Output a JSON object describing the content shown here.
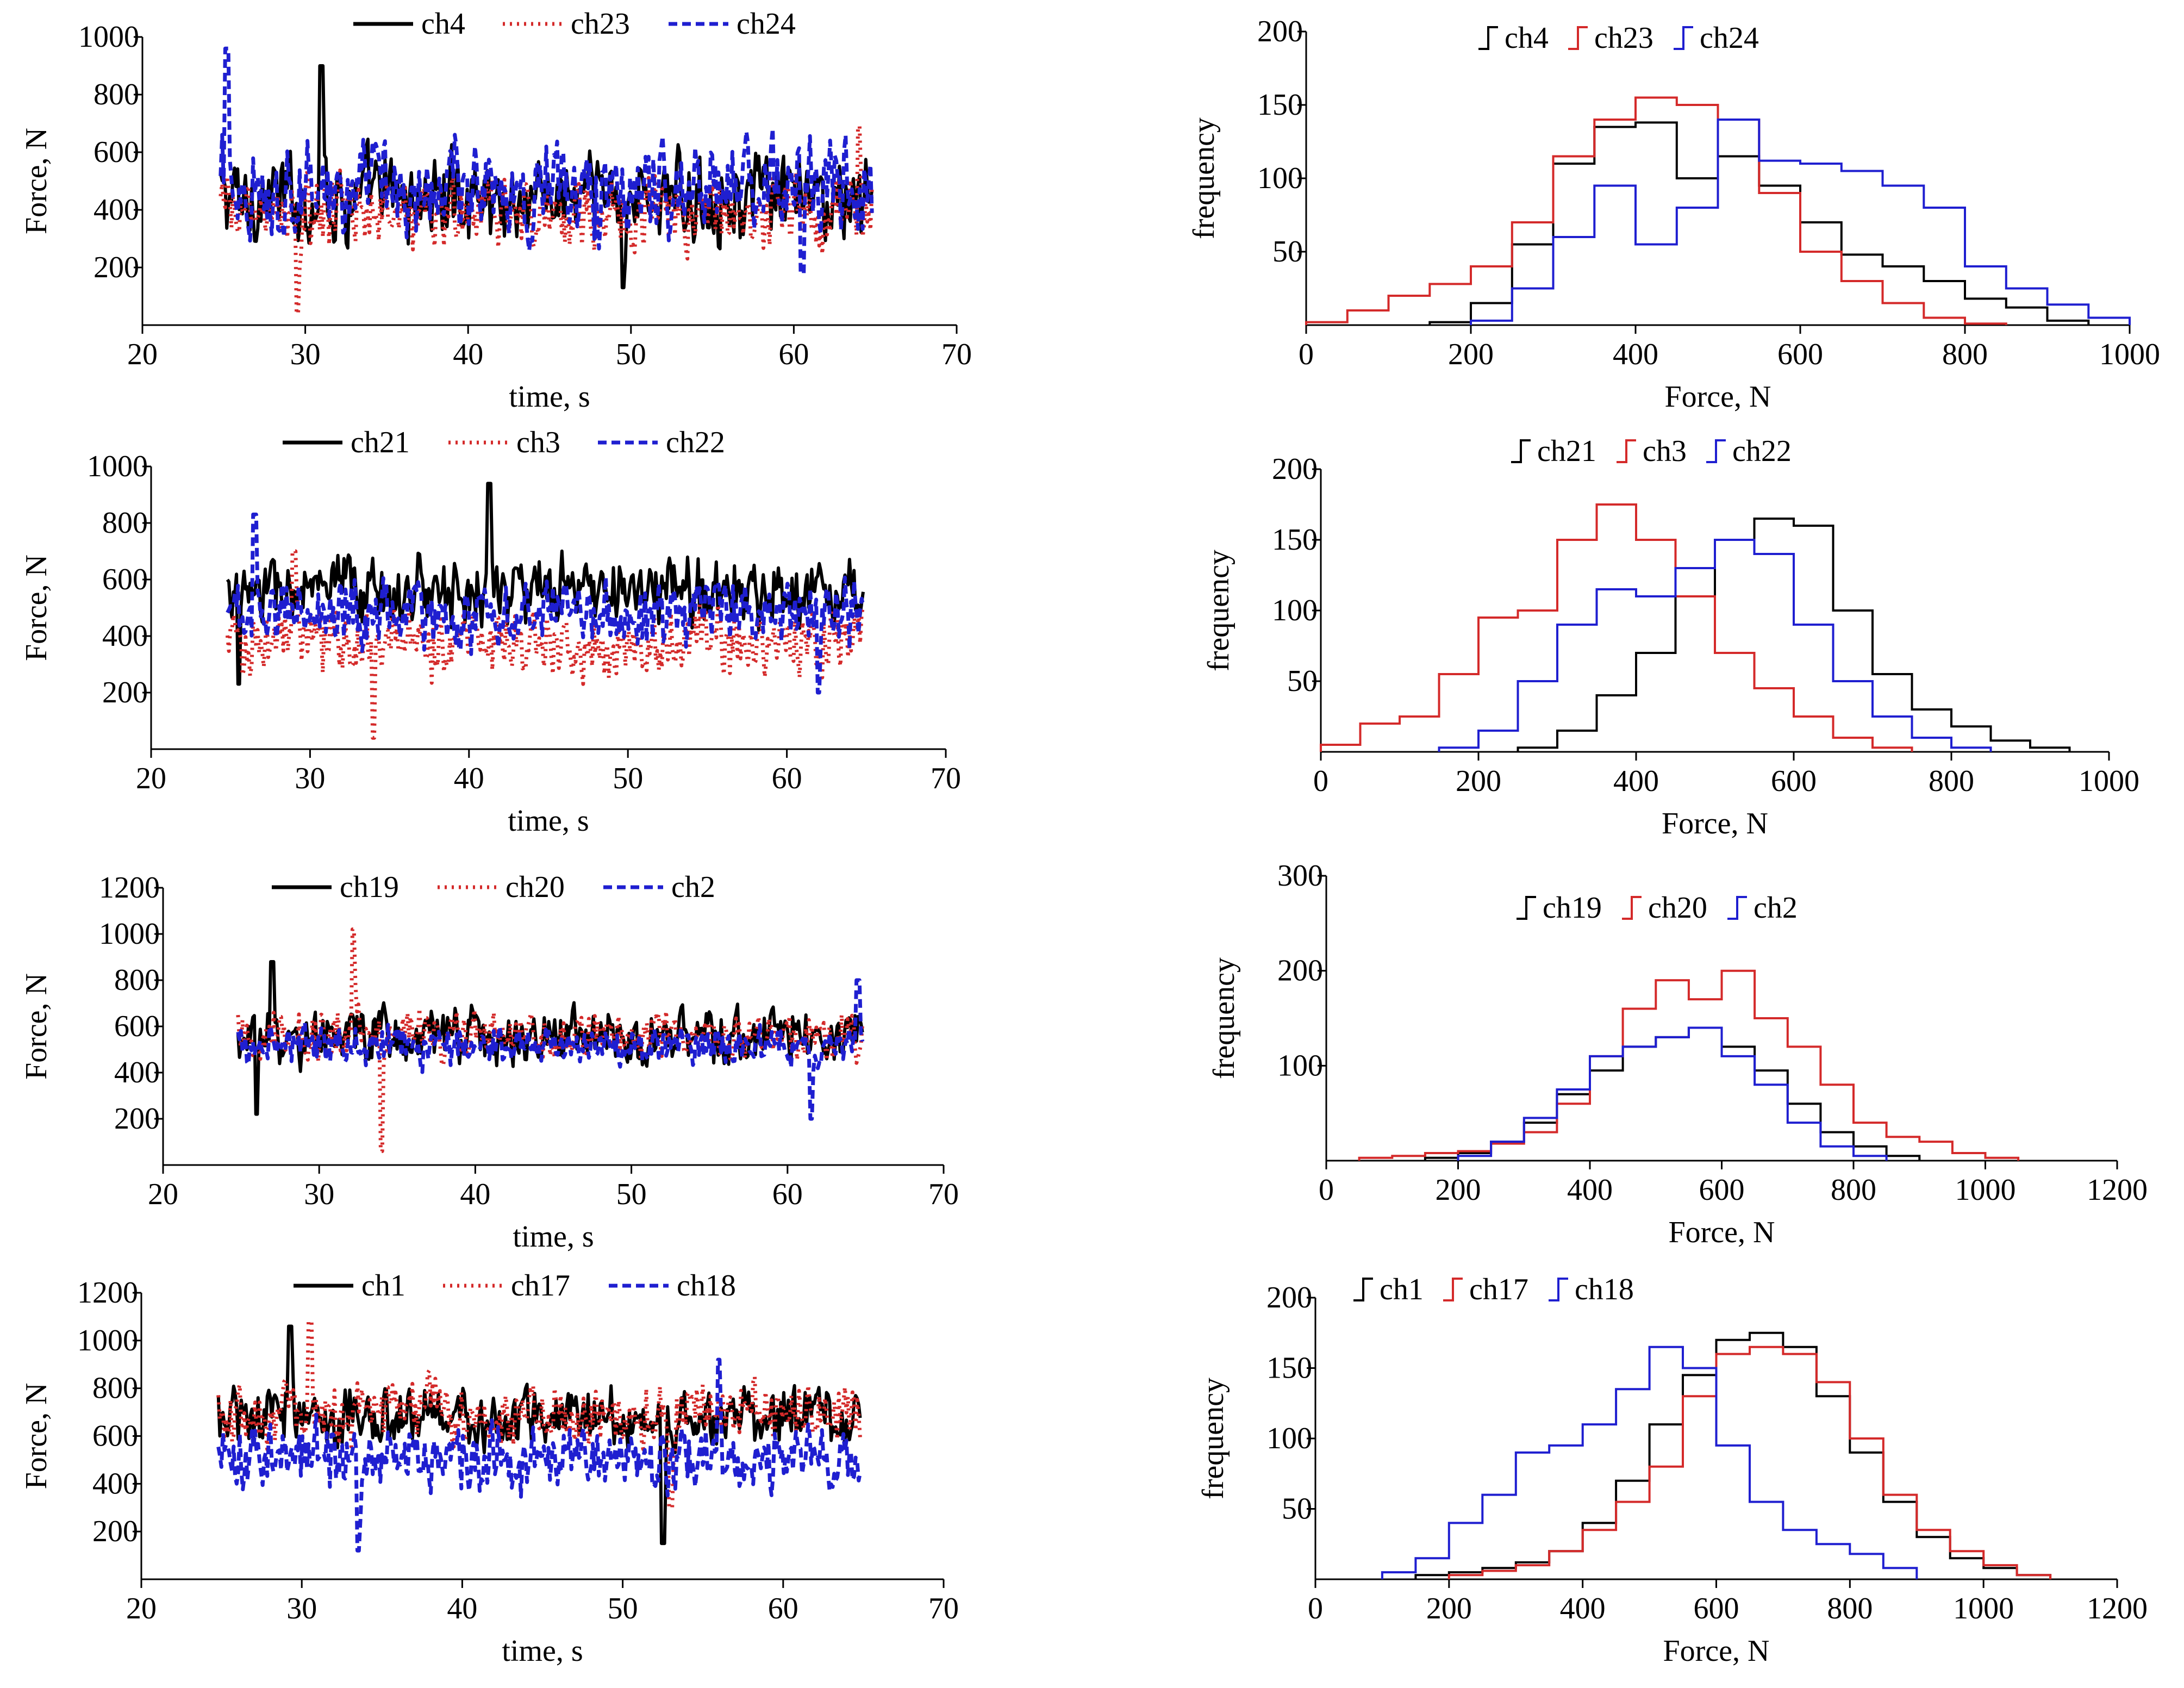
{
  "colors": {
    "black": "#000000",
    "red": "#d42a2a",
    "blue": "#1f1fd0"
  },
  "chart_data": [
    {
      "id": "ts1",
      "type": "line",
      "title": "",
      "xlabel": "time, s",
      "ylabel": "Force, N",
      "xlim": [
        20,
        70
      ],
      "ylim": [
        0,
        1000
      ],
      "xticks": [
        20,
        30,
        40,
        50,
        60,
        70
      ],
      "yticks": [
        200,
        400,
        600,
        800,
        1000
      ],
      "legend": "top",
      "series": [
        {
          "name": "ch4",
          "color": "#000000",
          "dash": "solid",
          "x_range": [
            24.8,
            64.8
          ],
          "mean": 440,
          "amplitude": 150,
          "min": 130,
          "max": 900,
          "peak": [
            31,
            900
          ],
          "trough": [
            49.5,
            130
          ]
        },
        {
          "name": "ch23",
          "color": "#d42a2a",
          "dash": "dotted",
          "x_range": [
            24.8,
            64.8
          ],
          "mean": 390,
          "amplitude": 130,
          "min": 40,
          "max": 700,
          "peak": [
            64,
            690
          ],
          "trough": [
            29.5,
            40
          ]
        },
        {
          "name": "ch24",
          "color": "#1f1fd0",
          "dash": "dashed",
          "x_range": [
            24.8,
            64.8
          ],
          "mean": 470,
          "amplitude": 165,
          "min": 180,
          "max": 960,
          "peak": [
            25.2,
            960
          ],
          "trough": [
            60.5,
            180
          ]
        }
      ]
    },
    {
      "id": "h1",
      "type": "histogram",
      "title": "",
      "xlabel": "Force, N",
      "ylabel": "frequency",
      "xlim": [
        0,
        1000
      ],
      "ylim": [
        0,
        200
      ],
      "xticks": [
        0,
        200,
        400,
        600,
        800,
        1000
      ],
      "yticks": [
        50,
        100,
        150,
        200
      ],
      "legend": "top",
      "series": [
        {
          "name": "ch4",
          "color": "#000000",
          "x": [
            150,
            200,
            250,
            300,
            350,
            400,
            450,
            500,
            550,
            600,
            650,
            700,
            750,
            800,
            850,
            900
          ],
          "y": [
            2,
            15,
            55,
            110,
            135,
            138,
            100,
            115,
            95,
            70,
            48,
            40,
            30,
            18,
            12,
            3
          ]
        },
        {
          "name": "ch23",
          "color": "#d42a2a",
          "x": [
            0,
            50,
            100,
            150,
            200,
            250,
            300,
            350,
            400,
            450,
            500,
            550,
            600,
            650,
            700,
            750,
            800
          ],
          "y": [
            2,
            10,
            20,
            28,
            40,
            70,
            115,
            140,
            155,
            150,
            140,
            90,
            50,
            30,
            15,
            5,
            1
          ]
        },
        {
          "name": "ch24",
          "color": "#1f1fd0",
          "x": [
            200,
            250,
            300,
            350,
            400,
            450,
            500,
            550,
            600,
            650,
            700,
            750,
            800,
            850,
            900,
            950
          ],
          "y": [
            3,
            25,
            60,
            95,
            55,
            80,
            140,
            112,
            110,
            105,
            95,
            80,
            40,
            25,
            14,
            5
          ]
        }
      ]
    },
    {
      "id": "ts2",
      "type": "line",
      "title": "",
      "xlabel": "time, s",
      "ylabel": "Force, N",
      "xlim": [
        20,
        70
      ],
      "ylim": [
        0,
        1000
      ],
      "xticks": [
        20,
        30,
        40,
        50,
        60,
        70
      ],
      "yticks": [
        200,
        400,
        600,
        800,
        1000
      ],
      "legend": "top",
      "series": [
        {
          "name": "ch21",
          "color": "#000000",
          "dash": "solid",
          "x_range": [
            24.8,
            64.8
          ],
          "mean": 560,
          "amplitude": 120,
          "min": 230,
          "max": 940,
          "peak": [
            41.3,
            940
          ],
          "trough": [
            25.5,
            230
          ]
        },
        {
          "name": "ch3",
          "color": "#d42a2a",
          "dash": "dotted",
          "x_range": [
            24.8,
            64.8
          ],
          "mean": 380,
          "amplitude": 125,
          "min": 40,
          "max": 720,
          "peak": [
            29,
            700
          ],
          "trough": [
            34,
            40
          ]
        },
        {
          "name": "ch22",
          "color": "#1f1fd0",
          "dash": "dashed",
          "x_range": [
            24.8,
            64.8
          ],
          "mean": 480,
          "amplitude": 120,
          "min": 200,
          "max": 840,
          "peak": [
            26.5,
            830
          ],
          "trough": [
            62,
            200
          ]
        }
      ]
    },
    {
      "id": "h2",
      "type": "histogram",
      "title": "",
      "xlabel": "Force, N",
      "ylabel": "frequency",
      "xlim": [
        0,
        1000
      ],
      "ylim": [
        0,
        200
      ],
      "xticks": [
        0,
        200,
        400,
        600,
        800,
        1000
      ],
      "yticks": [
        50,
        100,
        150,
        200
      ],
      "legend": "top",
      "series": [
        {
          "name": "ch21",
          "color": "#000000",
          "x": [
            250,
            300,
            350,
            400,
            450,
            500,
            550,
            600,
            650,
            700,
            750,
            800,
            850,
            900
          ],
          "y": [
            3,
            15,
            40,
            70,
            110,
            150,
            165,
            160,
            100,
            55,
            30,
            18,
            8,
            3
          ]
        },
        {
          "name": "ch3",
          "color": "#d42a2a",
          "x": [
            0,
            50,
            100,
            150,
            200,
            250,
            300,
            350,
            400,
            450,
            500,
            550,
            600,
            650,
            700
          ],
          "y": [
            5,
            20,
            25,
            55,
            95,
            100,
            150,
            175,
            150,
            110,
            70,
            45,
            25,
            10,
            3
          ]
        },
        {
          "name": "ch22",
          "color": "#1f1fd0",
          "x": [
            150,
            200,
            250,
            300,
            350,
            400,
            450,
            500,
            550,
            600,
            650,
            700,
            750,
            800
          ],
          "y": [
            3,
            15,
            50,
            90,
            115,
            110,
            130,
            150,
            140,
            90,
            50,
            25,
            10,
            3
          ]
        }
      ]
    },
    {
      "id": "ts3",
      "type": "line",
      "title": "",
      "xlabel": "time, s",
      "ylabel": "Force, N",
      "xlim": [
        20,
        70
      ],
      "ylim": [
        0,
        1200
      ],
      "xticks": [
        20,
        30,
        40,
        50,
        60,
        70
      ],
      "yticks": [
        200,
        400,
        600,
        800,
        1000,
        1200
      ],
      "legend": "top",
      "series": [
        {
          "name": "ch19",
          "color": "#000000",
          "dash": "solid",
          "x_range": [
            24.8,
            64.8
          ],
          "mean": 560,
          "amplitude": 120,
          "min": 220,
          "max": 880,
          "peak": [
            27,
            880
          ],
          "trough": [
            26,
            220
          ]
        },
        {
          "name": "ch20",
          "color": "#d42a2a",
          "dash": "dotted",
          "x_range": [
            24.8,
            64.8
          ],
          "mean": 560,
          "amplitude": 110,
          "min": 60,
          "max": 1020,
          "peak": [
            32.2,
            1020
          ],
          "trough": [
            34,
            60
          ]
        },
        {
          "name": "ch2",
          "color": "#1f1fd0",
          "dash": "dashed",
          "x_range": [
            24.8,
            64.8
          ],
          "mean": 520,
          "amplitude": 85,
          "min": 200,
          "max": 800,
          "peak": [
            64.5,
            800
          ],
          "trough": [
            61.5,
            200
          ]
        }
      ]
    },
    {
      "id": "h3",
      "type": "histogram",
      "title": "",
      "xlabel": "Force, N",
      "ylabel": "frequency",
      "xlim": [
        0,
        1200
      ],
      "ylim": [
        0,
        300
      ],
      "xticks": [
        0,
        200,
        400,
        600,
        800,
        1000,
        1200
      ],
      "yticks": [
        100,
        200,
        300
      ],
      "legend": "top",
      "series": [
        {
          "name": "ch19",
          "color": "#000000",
          "x": [
            150,
            200,
            250,
            300,
            350,
            400,
            450,
            500,
            550,
            600,
            650,
            700,
            750,
            800,
            850
          ],
          "y": [
            3,
            8,
            20,
            40,
            70,
            95,
            120,
            130,
            140,
            120,
            95,
            60,
            30,
            15,
            5
          ]
        },
        {
          "name": "ch20",
          "color": "#d42a2a",
          "x": [
            50,
            100,
            150,
            200,
            250,
            300,
            350,
            400,
            450,
            500,
            550,
            600,
            650,
            700,
            750,
            800,
            850,
            900,
            950,
            1000
          ],
          "y": [
            3,
            5,
            8,
            10,
            18,
            30,
            60,
            110,
            160,
            190,
            170,
            200,
            150,
            120,
            80,
            40,
            25,
            20,
            8,
            3
          ]
        },
        {
          "name": "ch2",
          "color": "#1f1fd0",
          "x": [
            200,
            250,
            300,
            350,
            400,
            450,
            500,
            550,
            600,
            650,
            700,
            750,
            800
          ],
          "y": [
            5,
            20,
            45,
            75,
            110,
            120,
            130,
            140,
            110,
            80,
            40,
            15,
            5
          ]
        }
      ]
    },
    {
      "id": "ts4",
      "type": "line",
      "title": "",
      "xlabel": "time, s",
      "ylabel": "Force, N",
      "xlim": [
        20,
        70
      ],
      "ylim": [
        0,
        1200
      ],
      "xticks": [
        20,
        30,
        40,
        50,
        60,
        70
      ],
      "yticks": [
        200,
        400,
        600,
        800,
        1000,
        1200
      ],
      "legend": "top",
      "series": [
        {
          "name": "ch1",
          "color": "#000000",
          "dash": "solid",
          "x_range": [
            24.8,
            64.8
          ],
          "mean": 680,
          "amplitude": 130,
          "min": 150,
          "max": 1060,
          "peak": [
            29.3,
            1060
          ],
          "trough": [
            52.5,
            150
          ]
        },
        {
          "name": "ch17",
          "color": "#d42a2a",
          "dash": "dotted",
          "x_range": [
            24.8,
            64.8
          ],
          "mean": 700,
          "amplitude": 130,
          "min": 300,
          "max": 1080,
          "peak": [
            30.5,
            1080
          ],
          "trough": [
            53,
            300
          ]
        },
        {
          "name": "ch18",
          "color": "#1f1fd0",
          "dash": "dashed",
          "x_range": [
            24.8,
            64.8
          ],
          "mean": 500,
          "amplitude": 140,
          "min": 120,
          "max": 920,
          "peak": [
            56,
            920
          ],
          "trough": [
            33.5,
            120
          ]
        }
      ]
    },
    {
      "id": "h4",
      "type": "histogram",
      "title": "",
      "xlabel": "Force, N",
      "ylabel": "frequency",
      "xlim": [
        0,
        1200
      ],
      "ylim": [
        0,
        200
      ],
      "xticks": [
        0,
        200,
        400,
        600,
        800,
        1000,
        1200
      ],
      "yticks": [
        50,
        100,
        150,
        200
      ],
      "legend": "top",
      "series": [
        {
          "name": "ch1",
          "color": "#000000",
          "x": [
            150,
            200,
            250,
            300,
            350,
            400,
            450,
            500,
            550,
            600,
            650,
            700,
            750,
            800,
            850,
            900,
            950,
            1000,
            1050
          ],
          "y": [
            3,
            5,
            8,
            12,
            20,
            40,
            70,
            110,
            145,
            170,
            175,
            165,
            130,
            90,
            55,
            30,
            15,
            8,
            3
          ]
        },
        {
          "name": "ch17",
          "color": "#d42a2a",
          "x": [
            200,
            250,
            300,
            350,
            400,
            450,
            500,
            550,
            600,
            650,
            700,
            750,
            800,
            850,
            900,
            950,
            1000,
            1050
          ],
          "y": [
            3,
            6,
            10,
            20,
            35,
            55,
            80,
            130,
            160,
            165,
            160,
            140,
            100,
            60,
            35,
            20,
            10,
            3
          ]
        },
        {
          "name": "ch18",
          "color": "#1f1fd0",
          "x": [
            100,
            150,
            200,
            250,
            300,
            350,
            400,
            450,
            500,
            550,
            600,
            650,
            700,
            750,
            800,
            850
          ],
          "y": [
            5,
            15,
            40,
            60,
            90,
            95,
            110,
            135,
            165,
            150,
            95,
            55,
            35,
            25,
            18,
            8
          ]
        }
      ]
    }
  ]
}
